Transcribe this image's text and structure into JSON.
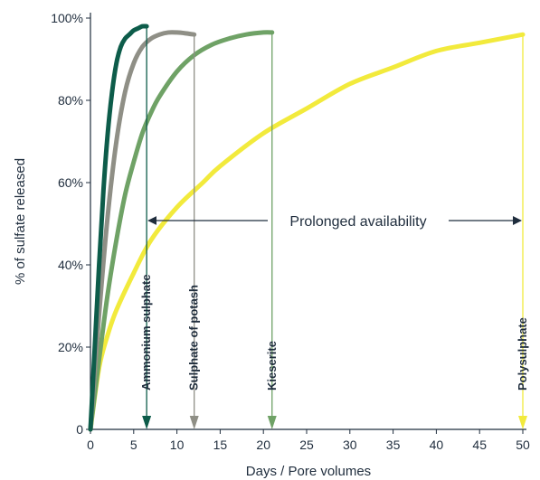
{
  "chart_data": {
    "type": "line",
    "xlabel": "Days / Pore volumes",
    "ylabel": "% of sulfate released",
    "xlim": [
      0,
      50
    ],
    "ylim": [
      0,
      100
    ],
    "x_ticks": [
      "0",
      "5",
      "10",
      "15",
      "20",
      "25",
      "30",
      "35",
      "40",
      "45",
      "50"
    ],
    "y_ticks": [
      "0",
      "20%",
      "40%",
      "60%",
      "80%",
      "100%"
    ],
    "grid": false,
    "annotation": "Prolonged availability",
    "series": [
      {
        "name": "Ammonium sulphate",
        "color": "#0d5c4a",
        "end_x": 6.5,
        "x": [
          0,
          0.5,
          1,
          1.5,
          2,
          2.5,
          3,
          3.5,
          4,
          4.5,
          5,
          5.5,
          6,
          6.5
        ],
        "y": [
          0,
          20,
          40,
          58,
          72,
          82,
          89,
          93,
          95,
          96,
          97,
          97.5,
          98,
          98
        ]
      },
      {
        "name": "Sulphate of potash",
        "color": "#8f8f86",
        "end_x": 12,
        "x": [
          0,
          1,
          2,
          3,
          4,
          5,
          6,
          7,
          8,
          9,
          10,
          11,
          12
        ],
        "y": [
          0,
          28,
          52,
          70,
          82,
          89,
          93,
          95,
          96,
          96.5,
          96.5,
          96.3,
          96
        ]
      },
      {
        "name": "Kieserite",
        "color": "#6fa266",
        "end_x": 21,
        "x": [
          0,
          1,
          2,
          3,
          4,
          5,
          6,
          7,
          8,
          10,
          12,
          14,
          16,
          18,
          20,
          21
        ],
        "y": [
          0,
          17,
          33,
          46,
          57,
          65,
          72,
          77,
          81,
          87,
          91,
          93.5,
          95,
          96,
          96.5,
          96.5
        ]
      },
      {
        "name": "Polysulphate",
        "color": "#f2ea3c",
        "end_x": 50,
        "x": [
          0,
          1,
          2,
          3,
          5,
          7,
          10,
          13,
          15,
          20,
          25,
          30,
          35,
          40,
          45,
          50
        ],
        "y": [
          0,
          15,
          23,
          29,
          38,
          46,
          54,
          60,
          64,
          72,
          78,
          84,
          88,
          92,
          94,
          96
        ]
      }
    ]
  }
}
